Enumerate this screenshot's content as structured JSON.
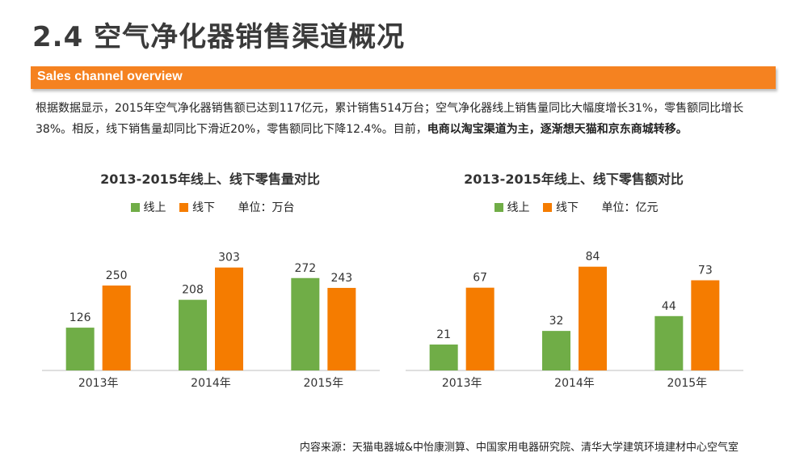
{
  "page": {
    "title": "2.4 空气净化器销售渠道概况",
    "section_label": "Sales channel overview",
    "description_normal": "根据数据显示，2015年空气净化器销售额已达到117亿元，累计销售514万台；空气净化器线上销售量同比大幅度增长31%，零售额同比增长38%。相反，线下销售量却同比下滑近20%，零售额同比下降12.4%。目前，",
    "description_bold": "电商以淘宝渠道为主，逐渐想天猫和京东商城转移。",
    "source": "内容来源：天猫电器城&中怡康测算、中国家用电器研究院、清华大学建筑环境建材中心空气室"
  },
  "colors": {
    "online": "#70ad47",
    "offline": "#f57c00",
    "accent": "#f58220"
  },
  "chart_data": [
    {
      "type": "bar",
      "title": "2013-2015年线上、线下零售量对比",
      "unit_label": "单位：万台",
      "categories": [
        "2013年",
        "2014年",
        "2015年"
      ],
      "series": [
        {
          "name": "线上",
          "values": [
            126,
            208,
            272
          ]
        },
        {
          "name": "线下",
          "values": [
            250,
            303,
            243
          ]
        }
      ],
      "ylim": [
        0,
        400
      ],
      "grid": false,
      "legend": "top-center"
    },
    {
      "type": "bar",
      "title": "2013-2015年线上、线下零售额对比",
      "unit_label": "单位：亿元",
      "categories": [
        "2013年",
        "2014年",
        "2015年"
      ],
      "series": [
        {
          "name": "线上",
          "values": [
            21,
            32,
            44
          ]
        },
        {
          "name": "线下",
          "values": [
            67,
            84,
            73
          ]
        }
      ],
      "ylim": [
        0,
        110
      ],
      "grid": false,
      "legend": "top-center"
    }
  ]
}
